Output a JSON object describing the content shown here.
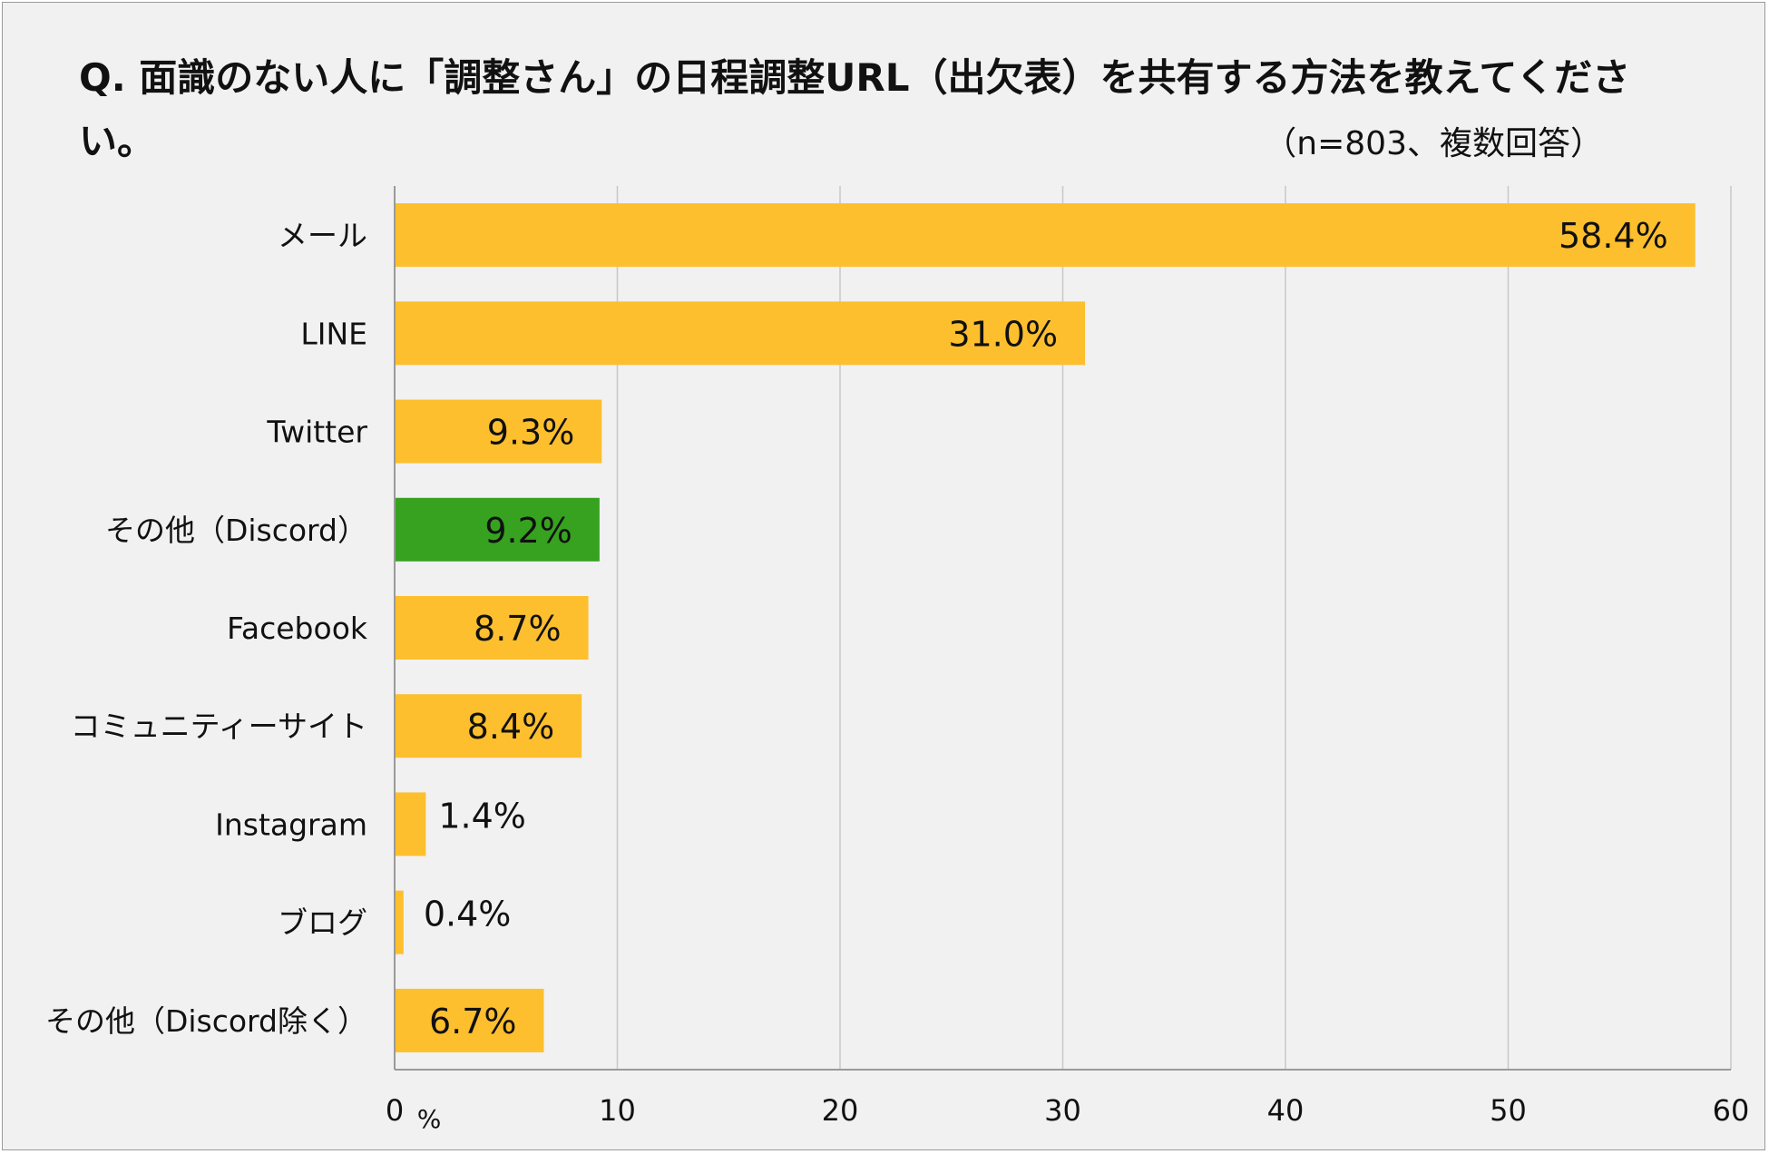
{
  "title": "Q.  面識のない人に「調整さん」の日程調整URL（出欠表）を共有する方法を教えてください。",
  "subtitle": "（n=803、複数回答）",
  "colors": {
    "bar": "#FDBF2D",
    "highlight": "#36A21F",
    "grid": "#c8c8c8",
    "axis": "#9a9a9a",
    "background": "#f1f1f1"
  },
  "chart_data": {
    "type": "bar",
    "orientation": "horizontal",
    "title": "Q.  面識のない人に「調整さん」の日程調整URL（出欠表）を共有する方法を教えてください。",
    "subtitle": "（n=803、複数回答）",
    "categories": [
      "メール",
      "LINE",
      "Twitter",
      "その他（Discord）",
      "Facebook",
      "コミュニティーサイト",
      "Instagram",
      "ブログ",
      "その他（Discord除く）"
    ],
    "values": [
      58.4,
      31.0,
      9.3,
      9.2,
      8.7,
      8.4,
      1.4,
      0.4,
      6.7
    ],
    "value_labels": [
      "58.4%",
      "31.0%",
      "9.3%",
      "9.2%",
      "8.7%",
      "8.4%",
      "1.4%",
      "0.4%",
      "6.7%"
    ],
    "highlight_index": 3,
    "xlim": [
      0,
      60
    ],
    "xticks": [
      0,
      10,
      20,
      30,
      40,
      50,
      60
    ],
    "xtick_labels": [
      "0",
      "10",
      "20",
      "30",
      "40",
      "50",
      "60"
    ],
    "x_unit": "%",
    "grid": true,
    "legend": "none"
  }
}
